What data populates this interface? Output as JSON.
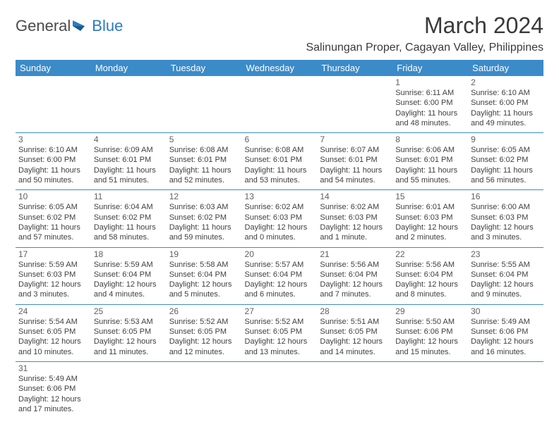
{
  "logo": {
    "part1": "General",
    "part2": "Blue",
    "color1": "#4a4a4a",
    "color2": "#2b7bbf"
  },
  "title": "March 2024",
  "location": "Salinungan Proper, Cagayan Valley, Philippines",
  "header_bg": "#3b8bc9",
  "header_fg": "#ffffff",
  "border_color": "#3b8bc9",
  "daynum_color": "#606060",
  "info_color": "#404040",
  "weekdays": [
    "Sunday",
    "Monday",
    "Tuesday",
    "Wednesday",
    "Thursday",
    "Friday",
    "Saturday"
  ],
  "weeks": [
    [
      null,
      null,
      null,
      null,
      null,
      {
        "d": "1",
        "sr": "Sunrise: 6:11 AM",
        "ss": "Sunset: 6:00 PM",
        "dl": "Daylight: 11 hours and 48 minutes."
      },
      {
        "d": "2",
        "sr": "Sunrise: 6:10 AM",
        "ss": "Sunset: 6:00 PM",
        "dl": "Daylight: 11 hours and 49 minutes."
      }
    ],
    [
      {
        "d": "3",
        "sr": "Sunrise: 6:10 AM",
        "ss": "Sunset: 6:00 PM",
        "dl": "Daylight: 11 hours and 50 minutes."
      },
      {
        "d": "4",
        "sr": "Sunrise: 6:09 AM",
        "ss": "Sunset: 6:01 PM",
        "dl": "Daylight: 11 hours and 51 minutes."
      },
      {
        "d": "5",
        "sr": "Sunrise: 6:08 AM",
        "ss": "Sunset: 6:01 PM",
        "dl": "Daylight: 11 hours and 52 minutes."
      },
      {
        "d": "6",
        "sr": "Sunrise: 6:08 AM",
        "ss": "Sunset: 6:01 PM",
        "dl": "Daylight: 11 hours and 53 minutes."
      },
      {
        "d": "7",
        "sr": "Sunrise: 6:07 AM",
        "ss": "Sunset: 6:01 PM",
        "dl": "Daylight: 11 hours and 54 minutes."
      },
      {
        "d": "8",
        "sr": "Sunrise: 6:06 AM",
        "ss": "Sunset: 6:01 PM",
        "dl": "Daylight: 11 hours and 55 minutes."
      },
      {
        "d": "9",
        "sr": "Sunrise: 6:05 AM",
        "ss": "Sunset: 6:02 PM",
        "dl": "Daylight: 11 hours and 56 minutes."
      }
    ],
    [
      {
        "d": "10",
        "sr": "Sunrise: 6:05 AM",
        "ss": "Sunset: 6:02 PM",
        "dl": "Daylight: 11 hours and 57 minutes."
      },
      {
        "d": "11",
        "sr": "Sunrise: 6:04 AM",
        "ss": "Sunset: 6:02 PM",
        "dl": "Daylight: 11 hours and 58 minutes."
      },
      {
        "d": "12",
        "sr": "Sunrise: 6:03 AM",
        "ss": "Sunset: 6:02 PM",
        "dl": "Daylight: 11 hours and 59 minutes."
      },
      {
        "d": "13",
        "sr": "Sunrise: 6:02 AM",
        "ss": "Sunset: 6:03 PM",
        "dl": "Daylight: 12 hours and 0 minutes."
      },
      {
        "d": "14",
        "sr": "Sunrise: 6:02 AM",
        "ss": "Sunset: 6:03 PM",
        "dl": "Daylight: 12 hours and 1 minute."
      },
      {
        "d": "15",
        "sr": "Sunrise: 6:01 AM",
        "ss": "Sunset: 6:03 PM",
        "dl": "Daylight: 12 hours and 2 minutes."
      },
      {
        "d": "16",
        "sr": "Sunrise: 6:00 AM",
        "ss": "Sunset: 6:03 PM",
        "dl": "Daylight: 12 hours and 3 minutes."
      }
    ],
    [
      {
        "d": "17",
        "sr": "Sunrise: 5:59 AM",
        "ss": "Sunset: 6:03 PM",
        "dl": "Daylight: 12 hours and 3 minutes."
      },
      {
        "d": "18",
        "sr": "Sunrise: 5:59 AM",
        "ss": "Sunset: 6:04 PM",
        "dl": "Daylight: 12 hours and 4 minutes."
      },
      {
        "d": "19",
        "sr": "Sunrise: 5:58 AM",
        "ss": "Sunset: 6:04 PM",
        "dl": "Daylight: 12 hours and 5 minutes."
      },
      {
        "d": "20",
        "sr": "Sunrise: 5:57 AM",
        "ss": "Sunset: 6:04 PM",
        "dl": "Daylight: 12 hours and 6 minutes."
      },
      {
        "d": "21",
        "sr": "Sunrise: 5:56 AM",
        "ss": "Sunset: 6:04 PM",
        "dl": "Daylight: 12 hours and 7 minutes."
      },
      {
        "d": "22",
        "sr": "Sunrise: 5:56 AM",
        "ss": "Sunset: 6:04 PM",
        "dl": "Daylight: 12 hours and 8 minutes."
      },
      {
        "d": "23",
        "sr": "Sunrise: 5:55 AM",
        "ss": "Sunset: 6:04 PM",
        "dl": "Daylight: 12 hours and 9 minutes."
      }
    ],
    [
      {
        "d": "24",
        "sr": "Sunrise: 5:54 AM",
        "ss": "Sunset: 6:05 PM",
        "dl": "Daylight: 12 hours and 10 minutes."
      },
      {
        "d": "25",
        "sr": "Sunrise: 5:53 AM",
        "ss": "Sunset: 6:05 PM",
        "dl": "Daylight: 12 hours and 11 minutes."
      },
      {
        "d": "26",
        "sr": "Sunrise: 5:52 AM",
        "ss": "Sunset: 6:05 PM",
        "dl": "Daylight: 12 hours and 12 minutes."
      },
      {
        "d": "27",
        "sr": "Sunrise: 5:52 AM",
        "ss": "Sunset: 6:05 PM",
        "dl": "Daylight: 12 hours and 13 minutes."
      },
      {
        "d": "28",
        "sr": "Sunrise: 5:51 AM",
        "ss": "Sunset: 6:05 PM",
        "dl": "Daylight: 12 hours and 14 minutes."
      },
      {
        "d": "29",
        "sr": "Sunrise: 5:50 AM",
        "ss": "Sunset: 6:06 PM",
        "dl": "Daylight: 12 hours and 15 minutes."
      },
      {
        "d": "30",
        "sr": "Sunrise: 5:49 AM",
        "ss": "Sunset: 6:06 PM",
        "dl": "Daylight: 12 hours and 16 minutes."
      }
    ],
    [
      {
        "d": "31",
        "sr": "Sunrise: 5:49 AM",
        "ss": "Sunset: 6:06 PM",
        "dl": "Daylight: 12 hours and 17 minutes."
      },
      null,
      null,
      null,
      null,
      null,
      null
    ]
  ]
}
